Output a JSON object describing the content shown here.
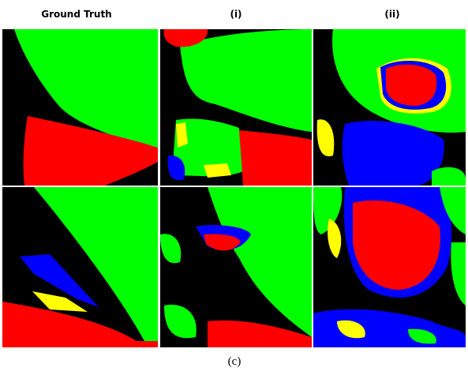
{
  "headers": [
    "Ground Truth",
    "(i)",
    "(ii)"
  ],
  "caption": "(c)"
}
